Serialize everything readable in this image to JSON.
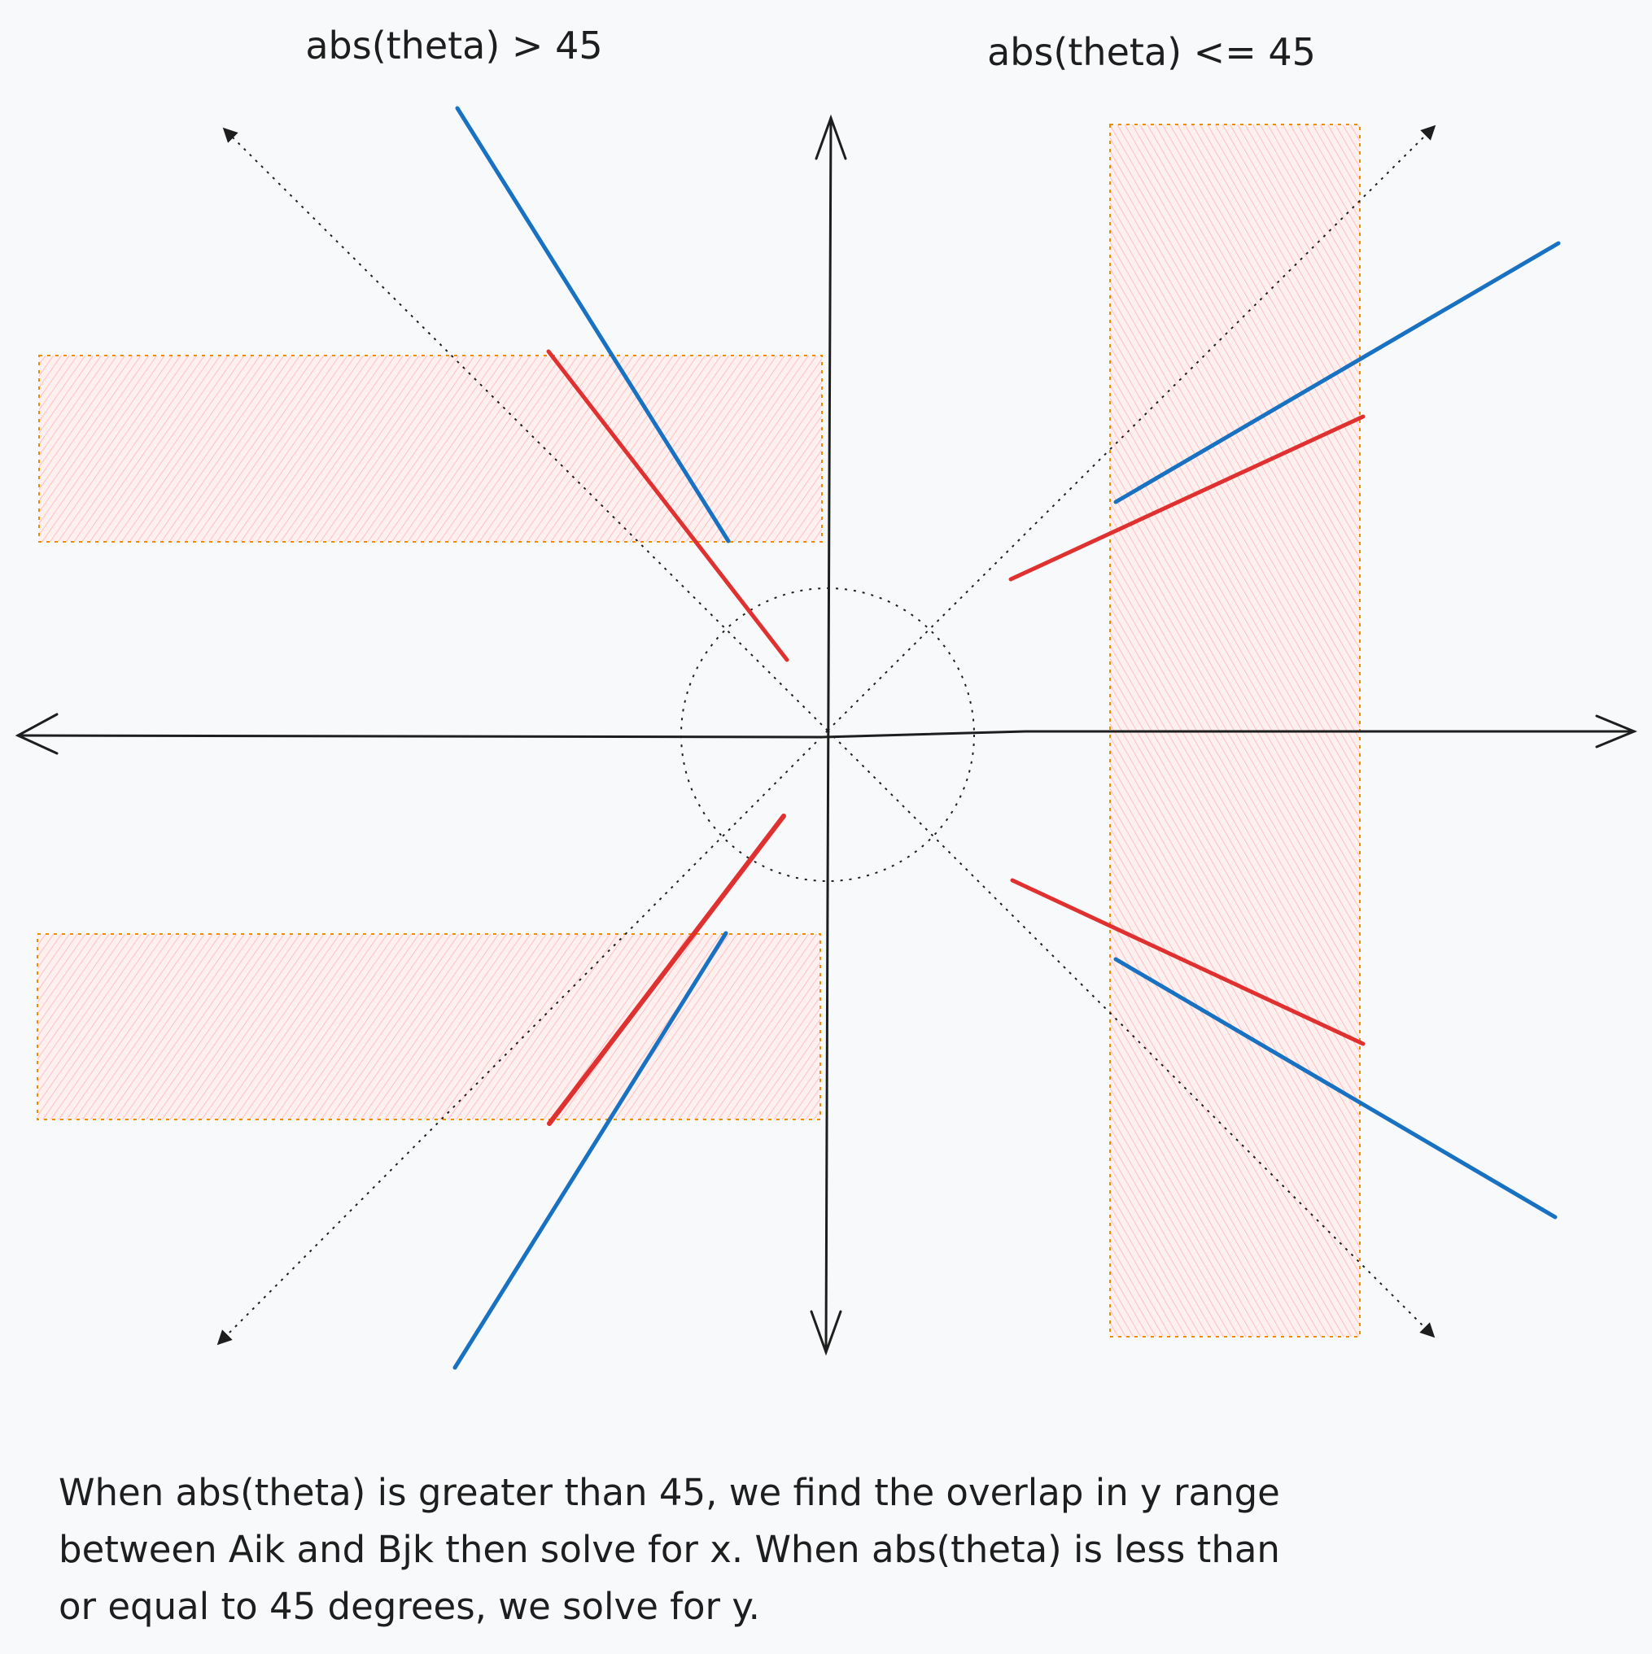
{
  "labels": {
    "left_heading": "abs(theta) > 45",
    "right_heading": "abs(theta) <= 45"
  },
  "caption": {
    "line1": "When abs(theta) is greater than 45, we find the overlap in y range",
    "line2": "between Aik and Bjk then solve for x. When abs(theta) is less than",
    "line3": "or equal to 45 degrees, we solve for y."
  },
  "colors": {
    "background": "#f8f9fa",
    "axis": "#1e1e1e",
    "line_blue": "#1971c2",
    "line_red": "#e03131",
    "region_border": "#f08c00",
    "region_fill": "#ffc9c9"
  }
}
